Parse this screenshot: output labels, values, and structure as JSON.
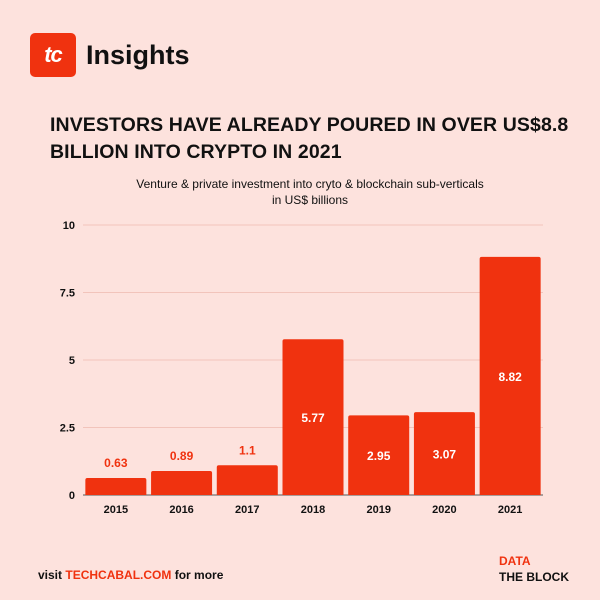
{
  "brand": {
    "badge_text": "tc",
    "name": "Insights"
  },
  "headline": "INVESTORS HAVE ALREADY POURED IN OVER US$8.8 BILLION INTO CRYPTO IN 2021",
  "chart_data": {
    "type": "bar",
    "title": "Venture & private investment into cryto & blockchain sub-verticals",
    "subtitle": "in US$ billions",
    "categories": [
      "2015",
      "2016",
      "2017",
      "2018",
      "2019",
      "2020",
      "2021"
    ],
    "values": [
      0.63,
      0.89,
      1.1,
      5.77,
      2.95,
      3.07,
      8.82
    ],
    "value_labels": [
      "0.63",
      "0.89",
      "1.1",
      "5.77",
      "2.95",
      "3.07",
      "8.82"
    ],
    "ylim": [
      0,
      10
    ],
    "yticks": [
      0,
      2.5,
      5,
      7.5,
      10
    ],
    "ytick_labels": [
      "0",
      "2.5",
      "5",
      "7.5",
      "10"
    ],
    "xlabel": "",
    "ylabel": "",
    "grid": true,
    "bar_color": "#f0320f",
    "background": "#fde2dd"
  },
  "footer": {
    "prefix": "visit ",
    "site": "TECHCABAL.COM",
    "suffix": " for more"
  },
  "source": {
    "label": "DATA",
    "name": "THE BLOCK"
  },
  "colors": {
    "accent": "#f0320f",
    "text": "#111111",
    "grid": "#f2c4bb"
  }
}
